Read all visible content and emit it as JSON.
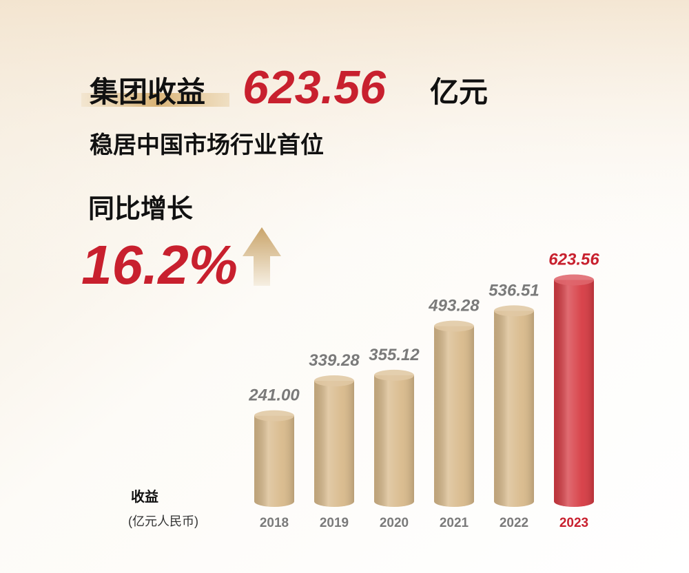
{
  "chart_data": {
    "type": "bar",
    "headline": {
      "label": "集团收益",
      "value": "623.56",
      "unit": "亿元"
    },
    "subtitle": "稳居中国市场行业首位",
    "growth": {
      "label": "同比增长",
      "value": "16.2%"
    },
    "y_label": "收益",
    "y_unit": "(亿元人民币)",
    "categories": [
      "2018",
      "2019",
      "2020",
      "2021",
      "2022",
      "2023"
    ],
    "values": [
      241.0,
      339.28,
      355.12,
      493.28,
      536.51,
      623.56
    ],
    "value_labels": [
      "241.00",
      "339.28",
      "355.12",
      "493.28",
      "536.51",
      "623.56"
    ],
    "colors": [
      "#d8b98a",
      "#d8b98a",
      "#d8b98a",
      "#d8b98a",
      "#d8b98a",
      "#d63a42"
    ],
    "label_colors": [
      "#7a7a7a",
      "#7a7a7a",
      "#7a7a7a",
      "#7a7a7a",
      "#7a7a7a",
      "#c8202e"
    ],
    "ylim": [
      0,
      640
    ]
  }
}
